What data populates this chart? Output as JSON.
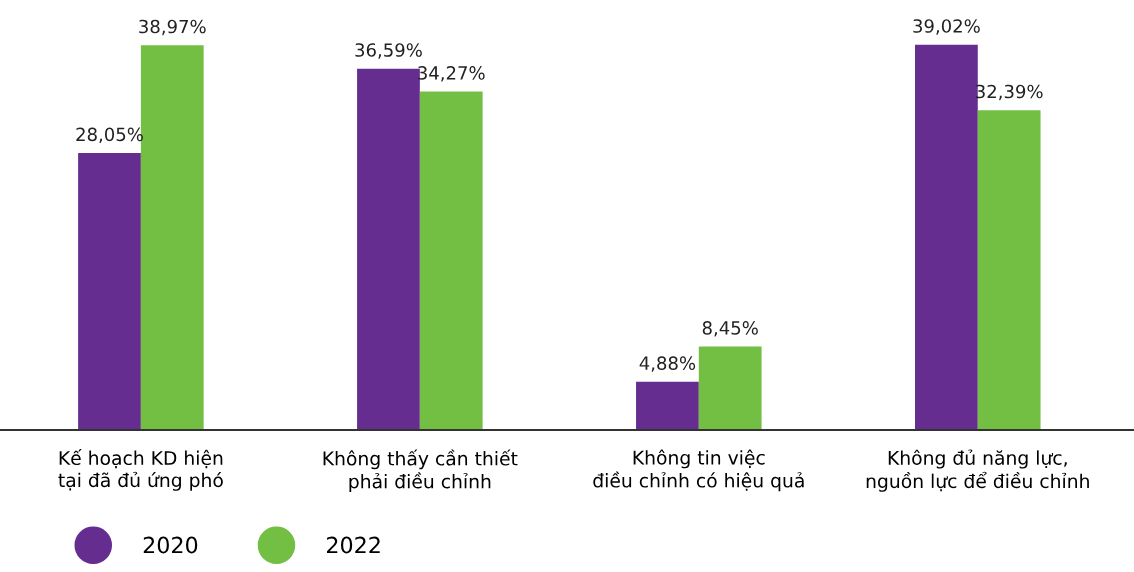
{
  "chart_data": {
    "type": "bar",
    "categories": [
      "Kế hoạch KD hiện\ntại đã đủ ứng phó",
      "Không thấy cần thiết\nphải điều chỉnh",
      "Không tin việc\nđiều chỉnh có hiệu quả",
      "Không đủ năng lực,\nnguồn lực để điều chỉnh"
    ],
    "series": [
      {
        "name": "2020",
        "color": "#662d91",
        "values": [
          28.05,
          36.59,
          4.88,
          39.02
        ],
        "value_labels": [
          "28,05%",
          "36,59%",
          "4,88%",
          "39,02%"
        ]
      },
      {
        "name": "2022",
        "color": "#72bf44",
        "values": [
          38.97,
          34.27,
          8.45,
          32.39
        ],
        "value_labels": [
          "38,97%",
          "34,27%",
          "8,45%",
          "32,39%"
        ]
      }
    ],
    "legend": "bottom left",
    "grid": false
  }
}
